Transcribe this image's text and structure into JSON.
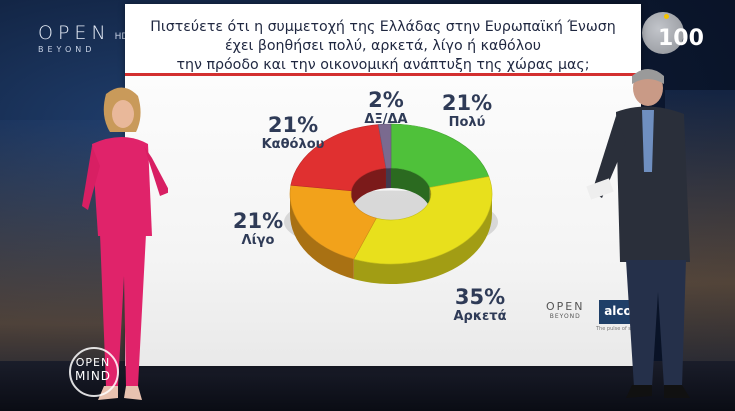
{
  "channel": {
    "logo_main": "OPEN",
    "logo_hd": "HD",
    "logo_sub": "BEYOND",
    "corner_badge": "100"
  },
  "question": {
    "lines": [
      "Πιστεύετε ότι η συμμετοχή της Ελλάδας στην Ευρωπαϊκή Ένωση",
      "έχει βοηθήσει πολύ, αρκετά, λίγο ή καθόλου",
      "την πρόοδο και την οικονομική ανάπτυξη της χώρας μας;"
    ]
  },
  "chart_data": {
    "type": "pie",
    "variant": "donut-3d",
    "title": "Πιστεύετε ότι η συμμετοχή της Ελλάδας στην Ευρωπαϊκή Ένωση έχει βοηθήσει πολύ, αρκετά, λίγο ή καθόλου την πρόοδο και την οικονομική ανάπτυξη της χώρας μας;",
    "slices": [
      {
        "label": "Πολύ",
        "value": 21,
        "display": "21%",
        "color": "#4fc13a"
      },
      {
        "label": "Αρκετά",
        "value": 35,
        "display": "35%",
        "color": "#e8e01c"
      },
      {
        "label": "Λίγο",
        "value": 21,
        "display": "21%",
        "color": "#f2a21b"
      },
      {
        "label": "Καθόλου",
        "value": 21,
        "display": "21%",
        "color": "#e03030"
      },
      {
        "label": "ΔΞ/ΔΑ",
        "value": 2,
        "display": "2%",
        "color": "#7a6a8f"
      }
    ]
  },
  "branding": {
    "open_logo": "OPEN",
    "open_sub": "BEYOND",
    "pollster": "alco",
    "pollster_tag": "The pulse of society"
  },
  "show_logo": {
    "line1": "OPEN",
    "line2": "MIND"
  }
}
